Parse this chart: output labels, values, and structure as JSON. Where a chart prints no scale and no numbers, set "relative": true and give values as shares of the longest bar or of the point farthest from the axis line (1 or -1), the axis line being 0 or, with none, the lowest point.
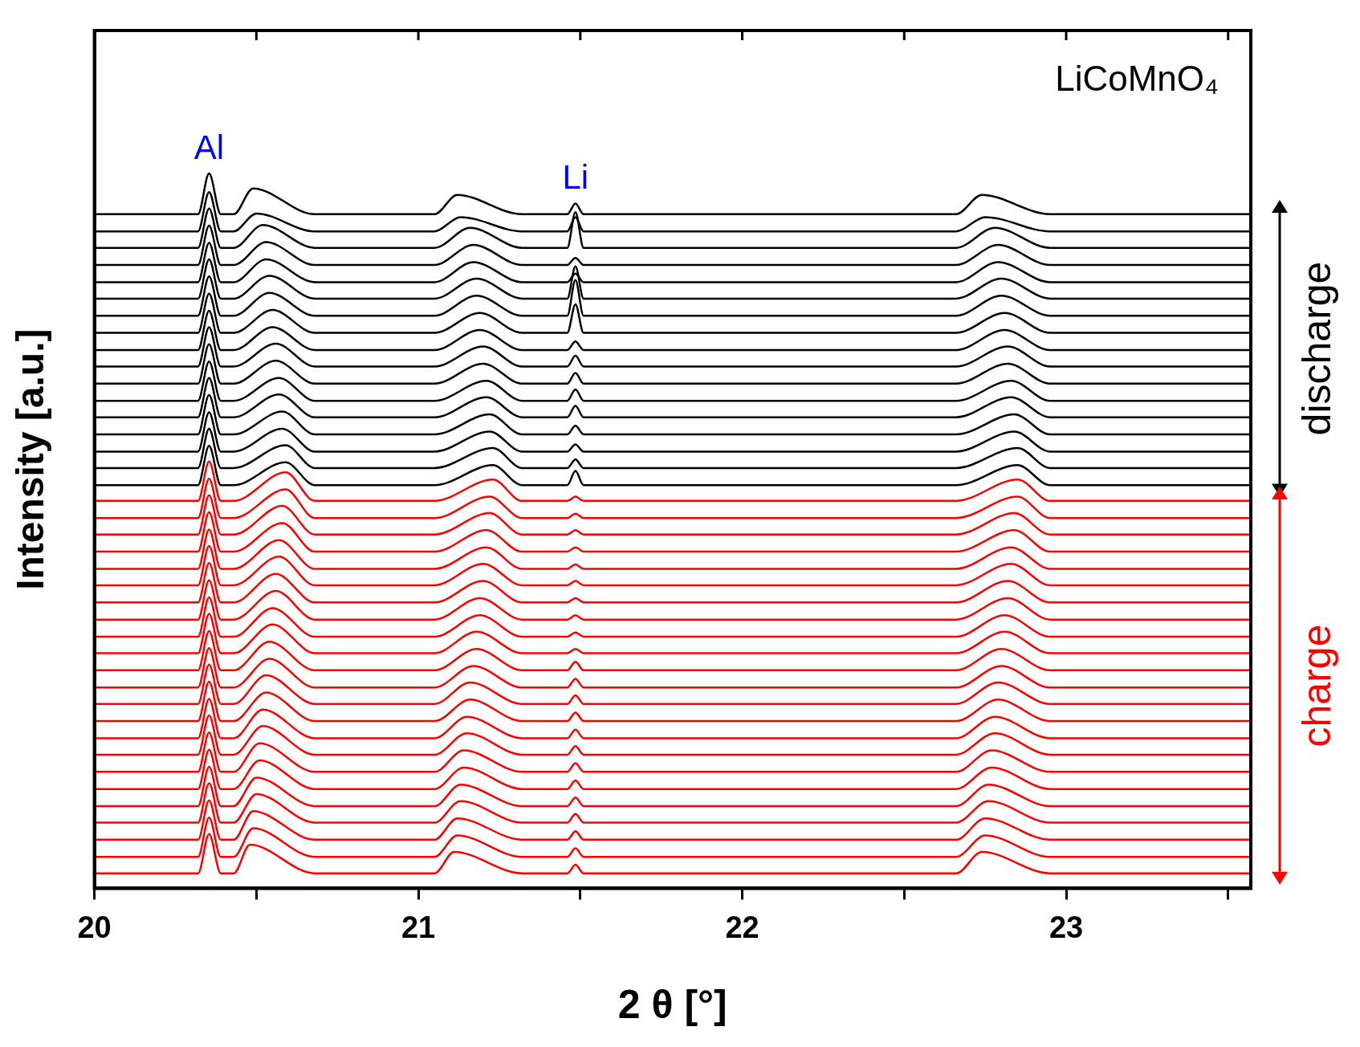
{
  "chart_data": {
    "type": "line",
    "relative": true,
    "xlabel": "2 θ [°]",
    "ylabel": "Intensity [a.u.]",
    "xlim": [
      20,
      23.57
    ],
    "xticks": [
      20,
      {
        "value": 20.5,
        "label": null
      },
      21,
      {
        "value": 21.5,
        "label": null
      },
      22,
      {
        "value": 22.5,
        "label": null
      },
      23,
      {
        "value": 23.5,
        "label": null
      }
    ],
    "legend": false,
    "annotations": [
      "LiCoMnO₄",
      {
        "text": "Al",
        "x": 20.354,
        "y": 1.0
      },
      {
        "text": "Li",
        "x": 21.485,
        "y": 0.958
      },
      "discharge",
      "charge"
    ],
    "series": [
      {
        "color": "#000000",
        "x": [
          20,
          20.32,
          20.354,
          20.39,
          20.43,
          20.49,
          20.68,
          21.05,
          21.12,
          21.32,
          21.46,
          21.485,
          21.51,
          22.66,
          22.74,
          22.95,
          23.57
        ],
        "values": [
          0.943,
          0.943,
          1.0,
          0.943,
          0.943,
          0.979,
          0.943,
          0.943,
          0.97,
          0.943,
          0.943,
          0.958,
          0.943,
          0.943,
          0.97,
          0.943,
          0.943
        ]
      },
      {
        "color": "#000000",
        "x": [
          20,
          20.32,
          20.354,
          20.39,
          20.43,
          20.5,
          20.68,
          21.05,
          21.13,
          21.32,
          21.46,
          21.485,
          21.51,
          22.66,
          22.75,
          22.95,
          23.57
        ],
        "values": [
          0.919,
          0.919,
          0.974,
          0.919,
          0.919,
          0.944,
          0.919,
          0.919,
          0.939,
          0.919,
          0.919,
          0.939,
          0.919,
          0.919,
          0.939,
          0.919,
          0.919
        ]
      },
      {
        "color": "#000000",
        "x": [
          20,
          20.32,
          20.354,
          20.39,
          20.43,
          20.52,
          20.68,
          21.05,
          21.16,
          21.32,
          21.46,
          21.485,
          21.51,
          22.66,
          22.78,
          22.95,
          23.57
        ],
        "values": [
          0.896,
          0.896,
          0.951,
          0.896,
          0.896,
          0.928,
          0.896,
          0.896,
          0.924,
          0.896,
          0.896,
          0.946,
          0.896,
          0.896,
          0.924,
          0.896,
          0.896
        ]
      },
      {
        "color": "#000000",
        "x": [
          20,
          20.32,
          20.354,
          20.39,
          20.43,
          20.53,
          20.68,
          21.05,
          21.17,
          21.32,
          21.46,
          21.485,
          21.51,
          22.66,
          22.79,
          22.95,
          23.57
        ],
        "values": [
          0.872,
          0.872,
          0.927,
          0.872,
          0.872,
          0.904,
          0.872,
          0.872,
          0.9,
          0.872,
          0.872,
          0.882,
          0.872,
          0.872,
          0.9,
          0.872,
          0.872
        ]
      },
      {
        "color": "#000000",
        "x": [
          20,
          20.32,
          20.354,
          20.39,
          20.43,
          20.53,
          20.68,
          21.05,
          21.17,
          21.32,
          21.46,
          21.485,
          21.51,
          22.66,
          22.79,
          22.95,
          23.57
        ],
        "values": [
          0.848,
          0.848,
          0.903,
          0.848,
          0.848,
          0.88,
          0.848,
          0.848,
          0.876,
          0.848,
          0.848,
          0.86,
          0.848,
          0.848,
          0.876,
          0.848,
          0.848
        ]
      },
      {
        "color": "#000000",
        "x": [
          20,
          20.32,
          20.354,
          20.39,
          20.43,
          20.54,
          20.68,
          21.05,
          21.18,
          21.32,
          21.46,
          21.485,
          21.51,
          22.66,
          22.8,
          22.95,
          23.57
        ],
        "values": [
          0.825,
          0.825,
          0.88,
          0.825,
          0.825,
          0.857,
          0.825,
          0.825,
          0.853,
          0.825,
          0.825,
          0.87,
          0.825,
          0.825,
          0.853,
          0.825,
          0.825
        ]
      },
      {
        "color": "#000000",
        "x": [
          20,
          20.32,
          20.354,
          20.39,
          20.43,
          20.54,
          20.68,
          21.05,
          21.18,
          21.32,
          21.46,
          21.485,
          21.51,
          22.66,
          22.8,
          22.95,
          23.57
        ],
        "values": [
          0.801,
          0.801,
          0.856,
          0.801,
          0.801,
          0.833,
          0.801,
          0.801,
          0.829,
          0.801,
          0.801,
          0.851,
          0.801,
          0.801,
          0.829,
          0.801,
          0.801
        ]
      },
      {
        "color": "#000000",
        "x": [
          20,
          20.32,
          20.354,
          20.39,
          20.43,
          20.55,
          20.68,
          21.05,
          21.19,
          21.32,
          21.46,
          21.485,
          21.51,
          22.66,
          22.81,
          22.95,
          23.57
        ],
        "values": [
          0.777,
          0.777,
          0.832,
          0.777,
          0.777,
          0.809,
          0.777,
          0.777,
          0.805,
          0.777,
          0.777,
          0.817,
          0.777,
          0.777,
          0.805,
          0.777,
          0.777
        ]
      },
      {
        "color": "#000000",
        "x": [
          20,
          20.32,
          20.354,
          20.39,
          20.43,
          20.55,
          20.68,
          21.05,
          21.19,
          21.32,
          21.46,
          21.485,
          21.51,
          22.66,
          22.81,
          22.95,
          23.57
        ],
        "values": [
          0.753,
          0.753,
          0.808,
          0.753,
          0.753,
          0.785,
          0.753,
          0.753,
          0.781,
          0.753,
          0.753,
          0.765,
          0.753,
          0.753,
          0.781,
          0.753,
          0.753
        ]
      },
      {
        "color": "#000000",
        "x": [
          20,
          20.32,
          20.354,
          20.39,
          20.43,
          20.56,
          20.68,
          21.05,
          21.2,
          21.32,
          21.46,
          21.485,
          21.51,
          22.66,
          22.82,
          22.95,
          23.57
        ],
        "values": [
          0.73,
          0.73,
          0.785,
          0.73,
          0.73,
          0.762,
          0.73,
          0.73,
          0.758,
          0.73,
          0.73,
          0.745,
          0.73,
          0.73,
          0.758,
          0.73,
          0.73
        ]
      },
      {
        "color": "#000000",
        "x": [
          20,
          20.32,
          20.354,
          20.39,
          20.43,
          20.56,
          20.68,
          21.05,
          21.2,
          21.32,
          21.46,
          21.485,
          21.51,
          22.66,
          22.82,
          22.95,
          23.57
        ],
        "values": [
          0.706,
          0.706,
          0.761,
          0.706,
          0.706,
          0.738,
          0.706,
          0.706,
          0.734,
          0.706,
          0.706,
          0.721,
          0.706,
          0.706,
          0.734,
          0.706,
          0.706
        ]
      },
      {
        "color": "#000000",
        "x": [
          20,
          20.32,
          20.354,
          20.39,
          20.43,
          20.57,
          20.68,
          21.05,
          21.21,
          21.32,
          21.46,
          21.485,
          21.51,
          22.66,
          22.83,
          22.95,
          23.57
        ],
        "values": [
          0.682,
          0.682,
          0.737,
          0.682,
          0.682,
          0.714,
          0.682,
          0.682,
          0.71,
          0.682,
          0.682,
          0.698,
          0.682,
          0.682,
          0.71,
          0.682,
          0.682
        ]
      },
      {
        "color": "#000000",
        "x": [
          20,
          20.32,
          20.354,
          20.39,
          20.43,
          20.57,
          20.68,
          21.05,
          21.21,
          21.32,
          21.46,
          21.485,
          21.51,
          22.66,
          22.83,
          22.95,
          23.57
        ],
        "values": [
          0.659,
          0.659,
          0.714,
          0.659,
          0.659,
          0.691,
          0.659,
          0.659,
          0.687,
          0.659,
          0.659,
          0.675,
          0.659,
          0.659,
          0.687,
          0.659,
          0.659
        ]
      },
      {
        "color": "#000000",
        "x": [
          20,
          20.32,
          20.354,
          20.39,
          20.43,
          20.58,
          20.68,
          21.05,
          21.22,
          21.32,
          21.46,
          21.485,
          21.51,
          22.66,
          22.84,
          22.95,
          23.57
        ],
        "values": [
          0.635,
          0.635,
          0.69,
          0.635,
          0.635,
          0.667,
          0.635,
          0.635,
          0.663,
          0.635,
          0.635,
          0.647,
          0.635,
          0.635,
          0.663,
          0.635,
          0.635
        ]
      },
      {
        "color": "#000000",
        "x": [
          20,
          20.32,
          20.354,
          20.39,
          20.43,
          20.58,
          20.68,
          21.05,
          21.22,
          21.32,
          21.46,
          21.485,
          21.51,
          22.66,
          22.84,
          22.95,
          23.57
        ],
        "values": [
          0.611,
          0.611,
          0.666,
          0.611,
          0.611,
          0.643,
          0.611,
          0.611,
          0.639,
          0.611,
          0.611,
          0.621,
          0.611,
          0.611,
          0.639,
          0.611,
          0.611
        ]
      },
      {
        "color": "#000000",
        "x": [
          20,
          20.32,
          20.354,
          20.39,
          20.43,
          20.59,
          20.68,
          21.05,
          21.23,
          21.32,
          21.46,
          21.485,
          21.51,
          22.66,
          22.85,
          22.95,
          23.57
        ],
        "values": [
          0.588,
          0.588,
          0.643,
          0.588,
          0.588,
          0.62,
          0.588,
          0.588,
          0.616,
          0.588,
          0.588,
          0.6,
          0.588,
          0.588,
          0.616,
          0.588,
          0.588
        ]
      },
      {
        "color": "#000000",
        "x": [
          20,
          20.32,
          20.354,
          20.39,
          20.43,
          20.59,
          20.68,
          21.05,
          21.23,
          21.32,
          21.46,
          21.485,
          21.51,
          22.66,
          22.85,
          22.95,
          23.57
        ],
        "values": [
          0.564,
          0.564,
          0.619,
          0.564,
          0.564,
          0.596,
          0.564,
          0.564,
          0.592,
          0.564,
          0.564,
          0.584,
          0.564,
          0.564,
          0.592,
          0.564,
          0.564
        ]
      },
      {
        "color": "#ff0000",
        "x": [
          20,
          20.32,
          20.354,
          20.39,
          20.43,
          20.59,
          20.68,
          21.05,
          21.23,
          21.32,
          21.46,
          21.485,
          21.51,
          22.66,
          22.85,
          22.95,
          23.57
        ],
        "values": [
          0.542,
          0.542,
          0.597,
          0.542,
          0.542,
          0.582,
          0.542,
          0.542,
          0.572,
          0.542,
          0.542,
          0.548,
          0.542,
          0.542,
          0.572,
          0.542,
          0.542
        ]
      },
      {
        "color": "#ff0000",
        "x": [
          20,
          20.32,
          20.354,
          20.39,
          20.43,
          20.59,
          20.68,
          21.05,
          21.22,
          21.32,
          21.46,
          21.485,
          21.51,
          22.66,
          22.85,
          22.95,
          23.57
        ],
        "values": [
          0.518,
          0.518,
          0.573,
          0.518,
          0.518,
          0.558,
          0.518,
          0.518,
          0.548,
          0.518,
          0.518,
          0.524,
          0.518,
          0.518,
          0.548,
          0.518,
          0.518
        ]
      },
      {
        "color": "#ff0000",
        "x": [
          20,
          20.32,
          20.354,
          20.39,
          20.43,
          20.58,
          20.68,
          21.05,
          21.22,
          21.32,
          21.46,
          21.485,
          21.51,
          22.66,
          22.84,
          22.95,
          23.57
        ],
        "values": [
          0.495,
          0.495,
          0.55,
          0.495,
          0.495,
          0.535,
          0.495,
          0.495,
          0.525,
          0.495,
          0.495,
          0.501,
          0.495,
          0.495,
          0.525,
          0.495,
          0.495
        ]
      },
      {
        "color": "#ff0000",
        "x": [
          20,
          20.32,
          20.354,
          20.39,
          20.43,
          20.58,
          20.68,
          21.05,
          21.21,
          21.32,
          21.46,
          21.485,
          21.51,
          22.66,
          22.84,
          22.95,
          23.57
        ],
        "values": [
          0.471,
          0.471,
          0.526,
          0.471,
          0.471,
          0.511,
          0.471,
          0.471,
          0.501,
          0.471,
          0.471,
          0.477,
          0.471,
          0.471,
          0.501,
          0.471,
          0.471
        ]
      },
      {
        "color": "#ff0000",
        "x": [
          20,
          20.32,
          20.354,
          20.39,
          20.43,
          20.57,
          20.68,
          21.05,
          21.21,
          21.32,
          21.46,
          21.485,
          21.51,
          22.66,
          22.83,
          22.95,
          23.57
        ],
        "values": [
          0.447,
          0.447,
          0.502,
          0.447,
          0.447,
          0.487,
          0.447,
          0.447,
          0.477,
          0.447,
          0.447,
          0.453,
          0.447,
          0.447,
          0.477,
          0.447,
          0.447
        ]
      },
      {
        "color": "#ff0000",
        "x": [
          20,
          20.32,
          20.354,
          20.39,
          20.43,
          20.57,
          20.68,
          21.05,
          21.2,
          21.32,
          21.46,
          21.485,
          21.51,
          22.66,
          22.83,
          22.95,
          23.57
        ],
        "values": [
          0.424,
          0.424,
          0.479,
          0.424,
          0.424,
          0.464,
          0.424,
          0.424,
          0.454,
          0.424,
          0.424,
          0.43,
          0.424,
          0.424,
          0.454,
          0.424,
          0.424
        ]
      },
      {
        "color": "#ff0000",
        "x": [
          20,
          20.32,
          20.354,
          20.39,
          20.43,
          20.56,
          20.68,
          21.05,
          21.2,
          21.32,
          21.46,
          21.485,
          21.51,
          22.66,
          22.82,
          22.95,
          23.57
        ],
        "values": [
          0.4,
          0.4,
          0.455,
          0.4,
          0.4,
          0.44,
          0.4,
          0.4,
          0.43,
          0.4,
          0.4,
          0.406,
          0.4,
          0.4,
          0.43,
          0.4,
          0.4
        ]
      },
      {
        "color": "#ff0000",
        "x": [
          20,
          20.32,
          20.354,
          20.39,
          20.43,
          20.56,
          20.68,
          21.05,
          21.19,
          21.32,
          21.46,
          21.485,
          21.51,
          22.66,
          22.82,
          22.95,
          23.57
        ],
        "values": [
          0.376,
          0.376,
          0.431,
          0.376,
          0.376,
          0.416,
          0.376,
          0.376,
          0.406,
          0.376,
          0.376,
          0.382,
          0.376,
          0.376,
          0.406,
          0.376,
          0.376
        ]
      },
      {
        "color": "#ff0000",
        "x": [
          20,
          20.32,
          20.354,
          20.39,
          20.43,
          20.55,
          20.68,
          21.05,
          21.19,
          21.32,
          21.46,
          21.485,
          21.51,
          22.66,
          22.81,
          22.95,
          23.57
        ],
        "values": [
          0.352,
          0.352,
          0.407,
          0.352,
          0.352,
          0.392,
          0.352,
          0.352,
          0.382,
          0.352,
          0.352,
          0.358,
          0.352,
          0.352,
          0.382,
          0.352,
          0.352
        ]
      },
      {
        "color": "#ff0000",
        "x": [
          20,
          20.32,
          20.354,
          20.39,
          20.43,
          20.55,
          20.68,
          21.05,
          21.18,
          21.32,
          21.46,
          21.485,
          21.51,
          22.66,
          22.81,
          22.95,
          23.57
        ],
        "values": [
          0.329,
          0.329,
          0.384,
          0.329,
          0.329,
          0.369,
          0.329,
          0.329,
          0.359,
          0.329,
          0.329,
          0.335,
          0.329,
          0.329,
          0.359,
          0.329,
          0.329
        ]
      },
      {
        "color": "#ff0000",
        "x": [
          20,
          20.32,
          20.354,
          20.39,
          20.43,
          20.54,
          20.68,
          21.05,
          21.18,
          21.32,
          21.46,
          21.485,
          21.51,
          22.66,
          22.8,
          22.95,
          23.57
        ],
        "values": [
          0.305,
          0.305,
          0.36,
          0.305,
          0.305,
          0.345,
          0.305,
          0.305,
          0.335,
          0.305,
          0.305,
          0.317,
          0.305,
          0.305,
          0.335,
          0.305,
          0.305
        ]
      },
      {
        "color": "#ff0000",
        "x": [
          20,
          20.32,
          20.354,
          20.39,
          20.43,
          20.54,
          20.68,
          21.05,
          21.17,
          21.32,
          21.46,
          21.485,
          21.51,
          22.66,
          22.8,
          22.95,
          23.57
        ],
        "values": [
          0.281,
          0.281,
          0.336,
          0.281,
          0.281,
          0.321,
          0.281,
          0.281,
          0.311,
          0.281,
          0.281,
          0.293,
          0.281,
          0.281,
          0.311,
          0.281,
          0.281
        ]
      },
      {
        "color": "#ff0000",
        "x": [
          20,
          20.32,
          20.354,
          20.39,
          20.43,
          20.53,
          20.68,
          21.05,
          21.16,
          21.32,
          21.46,
          21.485,
          21.51,
          22.66,
          22.79,
          22.95,
          23.57
        ],
        "values": [
          0.258,
          0.258,
          0.313,
          0.258,
          0.258,
          0.298,
          0.258,
          0.258,
          0.288,
          0.258,
          0.258,
          0.27,
          0.258,
          0.258,
          0.288,
          0.258,
          0.258
        ]
      },
      {
        "color": "#ff0000",
        "x": [
          20,
          20.32,
          20.354,
          20.39,
          20.43,
          20.53,
          20.68,
          21.05,
          21.16,
          21.32,
          21.46,
          21.485,
          21.51,
          22.66,
          22.79,
          22.95,
          23.57
        ],
        "values": [
          0.234,
          0.234,
          0.289,
          0.234,
          0.234,
          0.274,
          0.234,
          0.234,
          0.264,
          0.234,
          0.234,
          0.246,
          0.234,
          0.234,
          0.264,
          0.234,
          0.234
        ]
      },
      {
        "color": "#ff0000",
        "x": [
          20,
          20.32,
          20.354,
          20.39,
          20.43,
          20.52,
          20.68,
          21.05,
          21.15,
          21.32,
          21.46,
          21.485,
          21.51,
          22.66,
          22.78,
          22.95,
          23.57
        ],
        "values": [
          0.21,
          0.21,
          0.265,
          0.21,
          0.21,
          0.25,
          0.21,
          0.21,
          0.24,
          0.21,
          0.21,
          0.222,
          0.21,
          0.21,
          0.24,
          0.21,
          0.21
        ]
      },
      {
        "color": "#ff0000",
        "x": [
          20,
          20.32,
          20.354,
          20.39,
          20.43,
          20.52,
          20.68,
          21.05,
          21.15,
          21.32,
          21.46,
          21.485,
          21.51,
          22.66,
          22.78,
          22.95,
          23.57
        ],
        "values": [
          0.187,
          0.187,
          0.242,
          0.187,
          0.187,
          0.227,
          0.187,
          0.187,
          0.217,
          0.187,
          0.187,
          0.199,
          0.187,
          0.187,
          0.217,
          0.187,
          0.187
        ]
      },
      {
        "color": "#ff0000",
        "x": [
          20,
          20.32,
          20.354,
          20.39,
          20.43,
          20.51,
          20.68,
          21.05,
          21.14,
          21.32,
          21.46,
          21.485,
          21.51,
          22.66,
          22.77,
          22.95,
          23.57
        ],
        "values": [
          0.163,
          0.163,
          0.218,
          0.163,
          0.163,
          0.203,
          0.163,
          0.163,
          0.193,
          0.163,
          0.163,
          0.175,
          0.163,
          0.163,
          0.193,
          0.163,
          0.163
        ]
      },
      {
        "color": "#ff0000",
        "x": [
          20,
          20.32,
          20.354,
          20.39,
          20.43,
          20.51,
          20.68,
          21.05,
          21.14,
          21.32,
          21.46,
          21.485,
          21.51,
          22.66,
          22.77,
          22.95,
          23.57
        ],
        "values": [
          0.139,
          0.139,
          0.194,
          0.139,
          0.139,
          0.179,
          0.139,
          0.139,
          0.169,
          0.139,
          0.139,
          0.151,
          0.139,
          0.139,
          0.169,
          0.139,
          0.139
        ]
      },
      {
        "color": "#ff0000",
        "x": [
          20,
          20.32,
          20.354,
          20.39,
          20.43,
          20.5,
          20.68,
          21.05,
          21.13,
          21.32,
          21.46,
          21.485,
          21.51,
          22.66,
          22.76,
          22.95,
          23.57
        ],
        "values": [
          0.115,
          0.115,
          0.17,
          0.115,
          0.115,
          0.155,
          0.115,
          0.115,
          0.145,
          0.115,
          0.115,
          0.127,
          0.115,
          0.115,
          0.145,
          0.115,
          0.115
        ]
      },
      {
        "color": "#ff0000",
        "x": [
          20,
          20.32,
          20.354,
          20.39,
          20.43,
          20.5,
          20.68,
          21.05,
          21.13,
          21.32,
          21.46,
          21.485,
          21.51,
          22.66,
          22.76,
          22.95,
          23.57
        ],
        "values": [
          0.092,
          0.092,
          0.147,
          0.092,
          0.092,
          0.132,
          0.092,
          0.092,
          0.122,
          0.092,
          0.092,
          0.104,
          0.092,
          0.092,
          0.122,
          0.092,
          0.092
        ]
      },
      {
        "color": "#ff0000",
        "x": [
          20,
          20.32,
          20.354,
          20.39,
          20.43,
          20.49,
          20.68,
          21.05,
          21.12,
          21.32,
          21.46,
          21.485,
          21.51,
          22.66,
          22.75,
          22.95,
          23.57
        ],
        "values": [
          0.068,
          0.068,
          0.123,
          0.068,
          0.068,
          0.108,
          0.068,
          0.068,
          0.098,
          0.068,
          0.068,
          0.08,
          0.068,
          0.068,
          0.098,
          0.068,
          0.068
        ]
      },
      {
        "color": "#ff0000",
        "x": [
          20,
          20.32,
          20.354,
          20.39,
          20.43,
          20.49,
          20.68,
          21.05,
          21.12,
          21.32,
          21.46,
          21.485,
          21.51,
          22.66,
          22.75,
          22.95,
          23.57
        ],
        "values": [
          0.044,
          0.044,
          0.099,
          0.044,
          0.044,
          0.084,
          0.044,
          0.044,
          0.074,
          0.044,
          0.044,
          0.056,
          0.044,
          0.044,
          0.074,
          0.044,
          0.044
        ]
      },
      {
        "color": "#ff0000",
        "x": [
          20,
          20.32,
          20.354,
          20.39,
          20.43,
          20.48,
          20.68,
          21.05,
          21.11,
          21.32,
          21.46,
          21.485,
          21.51,
          22.66,
          22.74,
          22.95,
          23.57
        ],
        "values": [
          0.021,
          0.021,
          0.076,
          0.021,
          0.021,
          0.061,
          0.021,
          0.021,
          0.051,
          0.021,
          0.021,
          0.033,
          0.021,
          0.021,
          0.051,
          0.021,
          0.021
        ]
      }
    ]
  }
}
